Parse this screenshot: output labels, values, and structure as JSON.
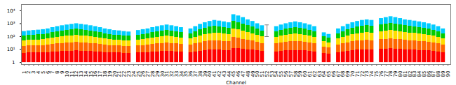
{
  "chart_data": {
    "type": "bar",
    "xlabel": "Channel",
    "categories": [
      "1",
      "2",
      "3",
      "4",
      "5",
      "6",
      "7",
      "8",
      "9",
      "10",
      "11",
      "12",
      "13",
      "14",
      "15",
      "16",
      "17",
      "18",
      "19",
      "20",
      "21",
      "22",
      "23",
      "24",
      "25",
      "26",
      "27",
      "28",
      "29",
      "30",
      "31",
      "32",
      "33",
      "34",
      "35",
      "36",
      "37",
      "38",
      "39",
      "40",
      "41",
      "42",
      "43",
      "44",
      "45",
      "46",
      "47",
      "48",
      "49",
      "50",
      "51",
      "52",
      "53",
      "54",
      "55",
      "56",
      "57",
      "58",
      "59",
      "60",
      "61",
      "62",
      "63",
      "64",
      "65",
      "66",
      "67",
      "68",
      "69",
      "70",
      "71",
      "72",
      "73",
      "74",
      "75",
      "76",
      "77",
      "78",
      "79",
      "80",
      "81",
      "82",
      "83",
      "84",
      "85",
      "86",
      "87",
      "88",
      "89",
      "90"
    ],
    "values": [
      250,
      280,
      300,
      320,
      350,
      400,
      500,
      600,
      700,
      800,
      900,
      1000,
      900,
      800,
      700,
      600,
      500,
      400,
      350,
      300,
      280,
      250,
      230,
      null,
      300,
      350,
      400,
      500,
      600,
      700,
      800,
      700,
      600,
      500,
      null,
      400,
      600,
      900,
      1200,
      1500,
      1800,
      1600,
      1400,
      1200,
      5000,
      4000,
      3000,
      2000,
      1500,
      1000,
      700,
      null,
      null,
      600,
      800,
      1000,
      1200,
      1400,
      1200,
      1000,
      800,
      600,
      null,
      200,
      150,
      null,
      400,
      600,
      900,
      1200,
      1500,
      1800,
      2000,
      1800,
      null,
      2500,
      3000,
      3500,
      3000,
      2500,
      2000,
      1800,
      1600,
      1400,
      1200,
      1000,
      800,
      600,
      400,
      null
    ],
    "base": 1,
    "colors": [
      "#ff0000",
      "#ff6600",
      "#ffdd00",
      "#00cc00",
      "#00ccff"
    ],
    "log": "y",
    "ylim": [
      0.7,
      30000
    ],
    "yticks": [
      1,
      {
        "value": 10,
        "label": "10¹"
      },
      {
        "value": 100,
        "label": "10²"
      },
      {
        "value": 1000,
        "label": "10³"
      },
      {
        "value": 10000,
        "label": "10⁴"
      }
    ],
    "error_bar": {
      "category": "52",
      "value": 300,
      "lower": 200,
      "upper": 500
    },
    "grid": false
  }
}
